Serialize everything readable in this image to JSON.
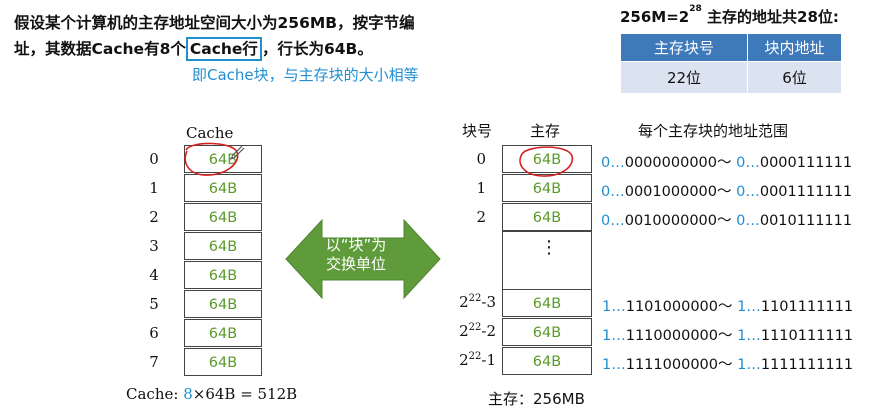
{
  "intro": {
    "text_before": "假设某个计算机的主存地址空间大小为256MB，按字节编址，其数据Cache有8个",
    "highlight": "Cache行",
    "text_after": "，行长为64B。",
    "note": "即Cache块，与主存块的大小相等"
  },
  "formula": {
    "prefix": "256M=2",
    "exp": "28",
    "suffix": " 主存的地址共28位:"
  },
  "addr_table": {
    "headers": [
      "主存块号",
      "块内地址"
    ],
    "values": [
      "22位",
      "6位"
    ]
  },
  "cache": {
    "title": "Cache",
    "indices": [
      "0",
      "1",
      "2",
      "3",
      "4",
      "5",
      "6",
      "7"
    ],
    "lines": [
      "64B",
      "64B",
      "64B",
      "64B",
      "64B",
      "64B",
      "64B",
      "64B"
    ],
    "footer_prefix": "Cache:",
    "footer_count": "8",
    "footer_rest": "×64B = 512B"
  },
  "arrow": {
    "line1": "以“块”为",
    "line2": "交换单位"
  },
  "memory": {
    "header_block": "块号",
    "header_main": "主存",
    "header_range": "每个主存块的地址范围",
    "top_rows": [
      {
        "index": "0",
        "block": "64B",
        "r1_pre": "0…",
        "r1_mid": "0000",
        "r1_suf": "000000～ ",
        "r2_pre": "0…",
        "r2_mid": "0000",
        "r2_suf": "111111"
      },
      {
        "index": "1",
        "block": "64B",
        "r1_pre": "0…",
        "r1_mid": "0001",
        "r1_suf": "000000～ ",
        "r2_pre": "0…",
        "r2_mid": "0001",
        "r2_suf": "111111"
      },
      {
        "index": "2",
        "block": "64B",
        "r1_pre": "0…",
        "r1_mid": "0010",
        "r1_suf": "000000～ ",
        "r2_pre": "0…",
        "r2_mid": "0010",
        "r2_suf": "111111"
      }
    ],
    "gap": "⋮",
    "bottom_rows": [
      {
        "base": "2",
        "exp": "22",
        "tail": "-3",
        "block": "64B",
        "r1_pre": "1…",
        "r1_mid": "1101",
        "r1_suf": "000000～ ",
        "r2_pre": "1…",
        "r2_mid": "1101",
        "r2_suf": "111111"
      },
      {
        "base": "2",
        "exp": "22",
        "tail": "-2",
        "block": "64B",
        "r1_pre": "1…",
        "r1_mid": "1110",
        "r1_suf": "000000～ ",
        "r2_pre": "1…",
        "r2_mid": "1110",
        "r2_suf": "111111"
      },
      {
        "base": "2",
        "exp": "22",
        "tail": "-1",
        "block": "64B",
        "r1_pre": "1…",
        "r1_mid": "1111",
        "r1_suf": "000000～ ",
        "r2_pre": "1…",
        "r2_mid": "1111",
        "r2_suf": "111111"
      }
    ],
    "footer": "主存：256MB"
  },
  "colors": {
    "accent_blue": "#1f8fd1",
    "block_green": "#5a9a2b",
    "arrow_green": "#5f9b3a",
    "circle_red": "#d42020",
    "table_header": "#3e79b9",
    "table_cell": "#dbe3f0"
  }
}
